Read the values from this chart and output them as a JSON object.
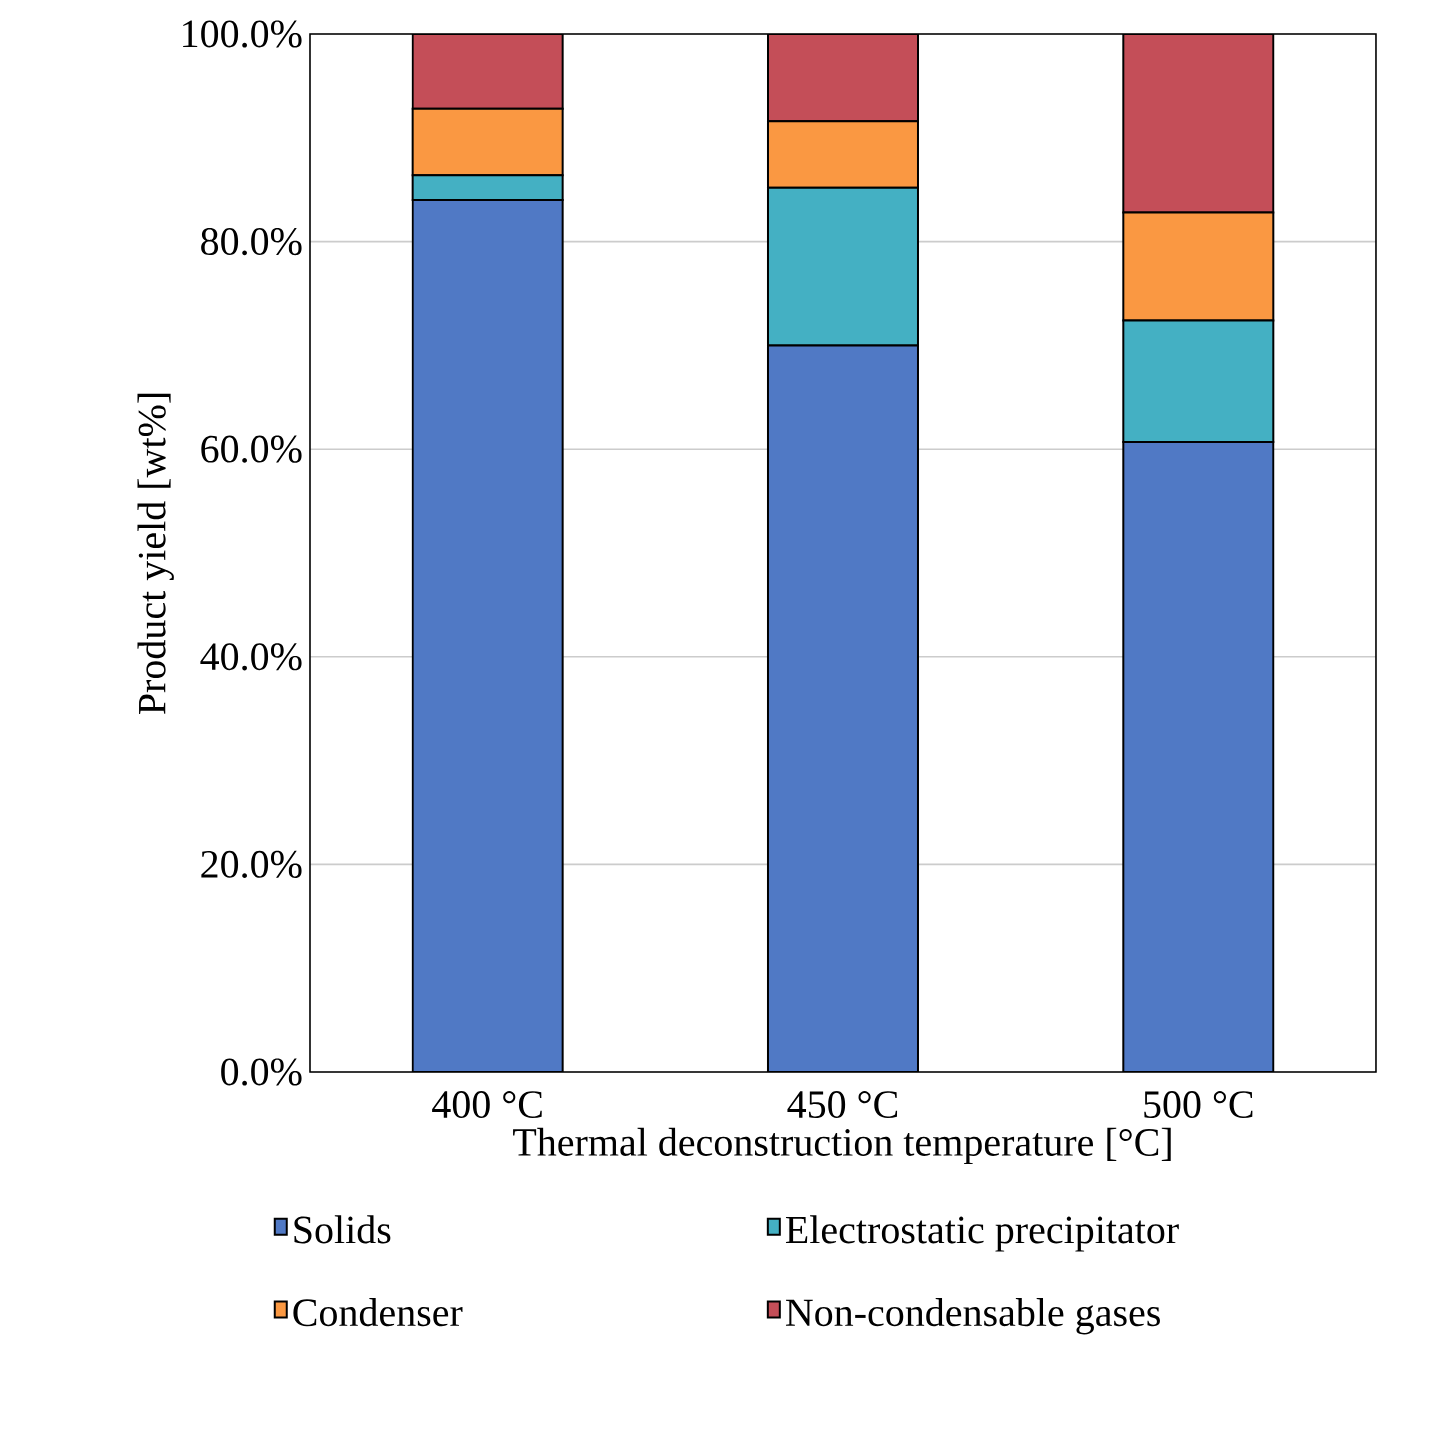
{
  "chart_data": {
    "type": "bar",
    "stacked": true,
    "xlabel": "Thermal deconstruction temperature [°C]",
    "ylabel": "Product yield [wt%]",
    "categories": [
      "400 °C",
      "450 °C",
      "500 °C"
    ],
    "series": [
      {
        "name": "Solids",
        "color": "#5079c5",
        "values": [
          84.0,
          70.0,
          60.7
        ]
      },
      {
        "name": "Electrostatic precipitator",
        "color": "#44b0c3",
        "values": [
          2.4,
          15.2,
          11.7
        ]
      },
      {
        "name": "Condenser",
        "color": "#fa9842",
        "values": [
          6.4,
          6.4,
          10.4
        ]
      },
      {
        "name": "Non-condensable gases",
        "color": "#c44e58",
        "values": [
          7.2,
          8.4,
          17.2
        ]
      }
    ],
    "ylim": [
      0,
      100
    ],
    "yticks": [
      {
        "value": 0,
        "label": "0.0%"
      },
      {
        "value": 20,
        "label": "20.0%"
      },
      {
        "value": 40,
        "label": "40.0%"
      },
      {
        "value": 60,
        "label": "60.0%"
      },
      {
        "value": 80,
        "label": "80.0%"
      },
      {
        "value": 100,
        "label": "100.0%"
      }
    ],
    "grid": "y",
    "legend": "bottom"
  }
}
